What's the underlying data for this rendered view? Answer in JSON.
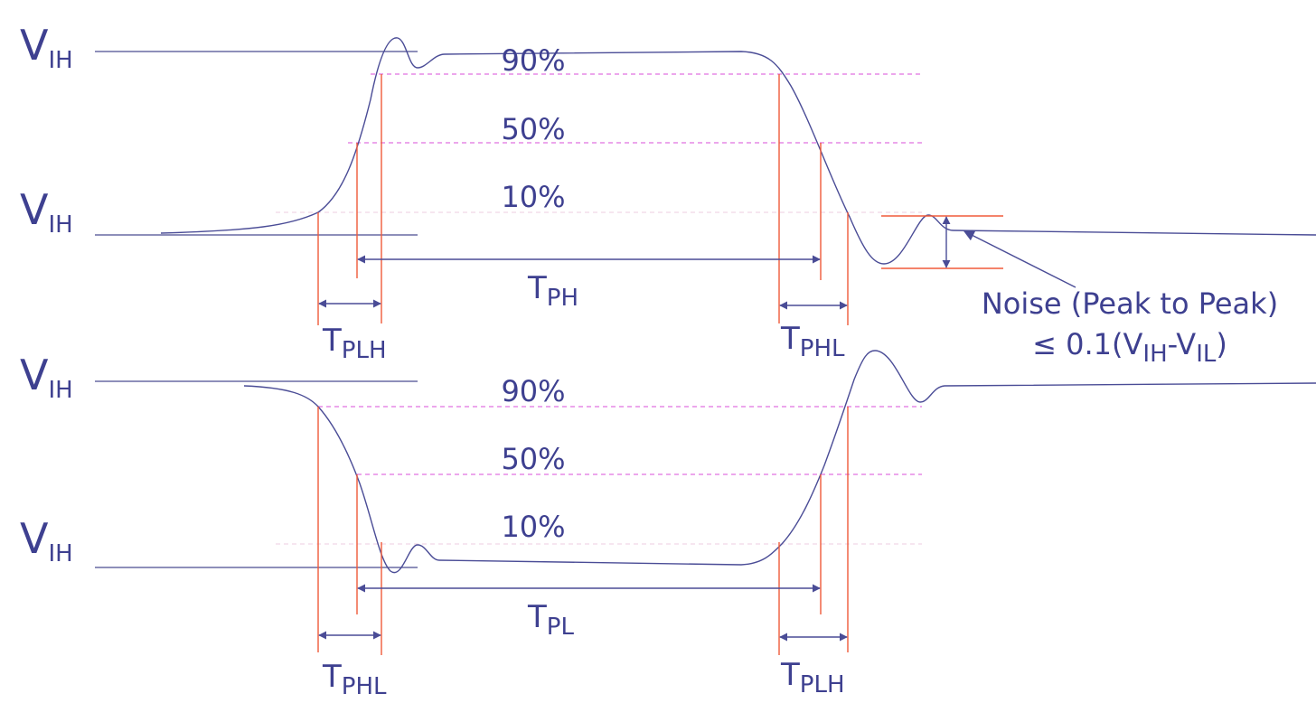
{
  "top": {
    "levels": [
      {
        "main": "V",
        "sub": "IH"
      },
      {
        "main": "V",
        "sub": "IH"
      }
    ],
    "percents": [
      "90%",
      "50%",
      "10%"
    ],
    "periods": [
      {
        "main": "T",
        "sub": "PH"
      },
      {
        "main": "T",
        "sub": "PLH"
      },
      {
        "main": "T",
        "sub": "PHL"
      }
    ]
  },
  "bottom": {
    "levels": [
      {
        "main": "V",
        "sub": "IH"
      },
      {
        "main": "V",
        "sub": "IH"
      }
    ],
    "percents": [
      "90%",
      "50%",
      "10%"
    ],
    "periods": [
      {
        "main": "T",
        "sub": "PL"
      },
      {
        "main": "T",
        "sub": "PHL"
      },
      {
        "main": "T",
        "sub": "PLH"
      }
    ]
  },
  "noise": {
    "line1": "Noise (Peak to Peak)",
    "line2": [
      "≤ 0.1(V",
      "IH",
      "-V",
      "IL",
      ")"
    ]
  }
}
